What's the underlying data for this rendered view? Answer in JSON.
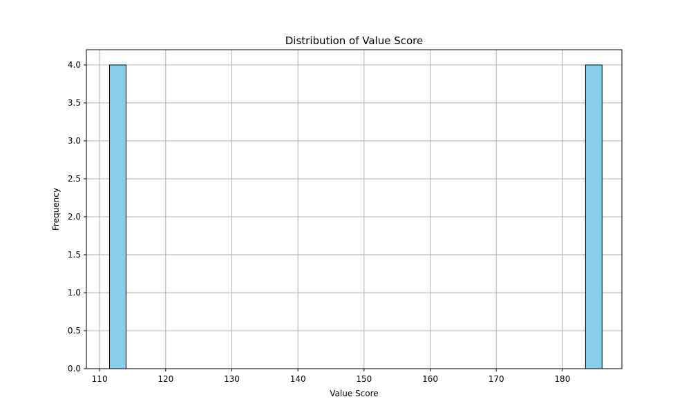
{
  "chart_data": {
    "type": "bar",
    "title": "Distribution of Value Score",
    "xlabel": "Value Score",
    "ylabel": "Frequency",
    "xlim": [
      108.0,
      189.0
    ],
    "ylim": [
      0.0,
      4.2
    ],
    "x_ticks": [
      110,
      120,
      130,
      140,
      150,
      160,
      170,
      180
    ],
    "y_ticks": [
      0.0,
      0.5,
      1.0,
      1.5,
      2.0,
      2.5,
      3.0,
      3.5,
      4.0
    ],
    "x_tick_labels": [
      "110",
      "120",
      "130",
      "140",
      "150",
      "160",
      "170",
      "180"
    ],
    "y_tick_labels": [
      "0.0",
      "0.5",
      "1.0",
      "1.5",
      "2.0",
      "2.5",
      "3.0",
      "3.5",
      "4.0"
    ],
    "bins": [
      {
        "start": 111.5,
        "end": 114.0,
        "count": 4
      },
      {
        "start": 183.5,
        "end": 186.0,
        "count": 4
      }
    ],
    "grid": true,
    "colors": {
      "bar_fill": "#87CEEB",
      "bar_edge": "#000000",
      "grid": "#b0b0b0",
      "axis": "#000000"
    }
  }
}
